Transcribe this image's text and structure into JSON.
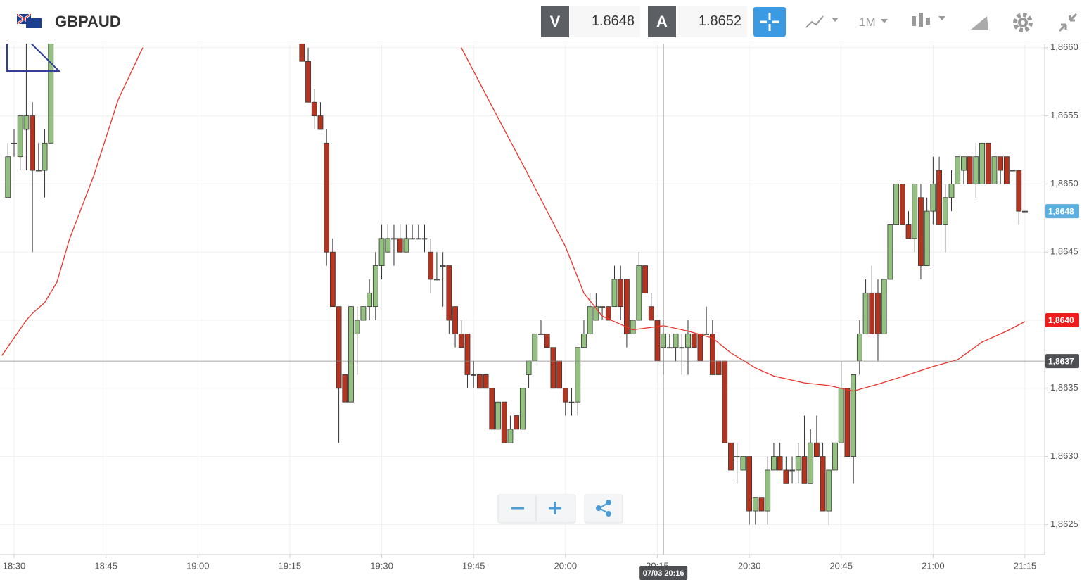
{
  "header": {
    "symbol": "GBPAUD",
    "bid_label": "V",
    "bid": "1.8648",
    "ask_label": "A",
    "ask": "1.8652",
    "timeframe": "1M"
  },
  "chart_data": {
    "type": "candlestick",
    "up_color": "#93c17f",
    "down_color": "#b5341f",
    "x": [
      "18:29",
      "18:30",
      "18:31",
      "18:32",
      "18:33",
      "18:34",
      "18:35",
      "18:36",
      "19:17",
      "19:18",
      "19:19",
      "19:20",
      "19:21",
      "19:22",
      "19:23",
      "19:24",
      "19:25",
      "19:26",
      "19:27",
      "19:28",
      "19:29",
      "19:30",
      "19:31",
      "19:32",
      "19:33",
      "19:34",
      "19:35",
      "19:36",
      "19:37",
      "19:38",
      "19:39",
      "19:40",
      "19:41",
      "19:42",
      "19:43",
      "19:44",
      "19:45",
      "19:46",
      "19:47",
      "19:48",
      "19:49",
      "19:50",
      "19:51",
      "19:52",
      "19:53",
      "19:54",
      "19:55",
      "19:56",
      "19:57",
      "19:58",
      "19:59",
      "20:00",
      "20:01",
      "20:02",
      "20:03",
      "20:04",
      "20:05",
      "20:06",
      "20:07",
      "20:08",
      "20:09",
      "20:10",
      "20:11",
      "20:12",
      "20:13",
      "20:14",
      "20:15",
      "20:16",
      "20:17",
      "20:18",
      "20:19",
      "20:20",
      "20:21",
      "20:22",
      "20:23",
      "20:24",
      "20:25",
      "20:26",
      "20:27",
      "20:28",
      "20:29",
      "20:30",
      "20:31",
      "20:32",
      "20:33",
      "20:34",
      "20:35",
      "20:36",
      "20:37",
      "20:38",
      "20:39",
      "20:40",
      "20:41",
      "20:42",
      "20:43",
      "20:44",
      "20:45",
      "20:46",
      "20:47",
      "20:48",
      "20:49",
      "20:50",
      "20:51",
      "20:52",
      "20:53",
      "20:54",
      "20:55",
      "20:56",
      "20:57",
      "20:58",
      "20:59",
      "21:00",
      "21:01",
      "21:02",
      "21:03",
      "21:04",
      "21:05",
      "21:06",
      "21:07",
      "21:08",
      "21:09",
      "21:10",
      "21:11",
      "21:12",
      "21:13",
      "21:14",
      "21:15"
    ],
    "ohlc": [
      [
        1.8649,
        1.8653,
        1.8649,
        1.8652
      ],
      [
        1.8653,
        1.8654,
        1.8652,
        1.8653
      ],
      [
        1.8652,
        1.8655,
        1.8651,
        1.8655
      ],
      [
        1.8654,
        1.8661,
        1.8651,
        1.8655
      ],
      [
        1.8655,
        1.8656,
        1.8645,
        1.8651
      ],
      [
        1.8651,
        1.8653,
        1.8651,
        1.8651
      ],
      [
        1.8651,
        1.8654,
        1.8649,
        1.8653
      ],
      [
        1.8653,
        1.8662,
        1.8653,
        1.8661
      ],
      [
        1.8661,
        1.8662,
        1.8659,
        1.8659
      ],
      [
        1.8659,
        1.866,
        1.8656,
        1.8656
      ],
      [
        1.8656,
        1.8657,
        1.8654,
        1.8655
      ],
      [
        1.8655,
        1.8656,
        1.8654,
        1.8654
      ],
      [
        1.8653,
        1.8654,
        1.8644,
        1.8645
      ],
      [
        1.8645,
        1.8646,
        1.8641,
        1.8641
      ],
      [
        1.8641,
        1.8641,
        1.8631,
        1.8635
      ],
      [
        1.8636,
        1.8636,
        1.8634,
        1.8634
      ],
      [
        1.8634,
        1.8641,
        1.8634,
        1.8641
      ],
      [
        1.8639,
        1.8641,
        1.8636,
        1.864
      ],
      [
        1.864,
        1.8641,
        1.864,
        1.8641
      ],
      [
        1.8641,
        1.8643,
        1.864,
        1.8642
      ],
      [
        1.8641,
        1.8645,
        1.864,
        1.8644
      ],
      [
        1.8644,
        1.8647,
        1.8643,
        1.8646
      ],
      [
        1.8645,
        1.8647,
        1.8645,
        1.8646
      ],
      [
        1.8646,
        1.8647,
        1.8644,
        1.8646
      ],
      [
        1.8646,
        1.8647,
        1.8645,
        1.8645
      ],
      [
        1.8645,
        1.8647,
        1.8645,
        1.8646
      ],
      [
        1.8646,
        1.8647,
        1.8646,
        1.8646
      ],
      [
        1.8646,
        1.8647,
        1.8646,
        1.8646
      ],
      [
        1.8646,
        1.8647,
        1.8645,
        1.8646
      ],
      [
        1.8645,
        1.8646,
        1.8642,
        1.8643
      ],
      [
        1.8643,
        1.8645,
        1.8643,
        1.8643
      ],
      [
        1.8644,
        1.8645,
        1.8641,
        1.8644
      ],
      [
        1.8644,
        1.8644,
        1.8639,
        1.864
      ],
      [
        1.8641,
        1.8641,
        1.8638,
        1.8639
      ],
      [
        1.8639,
        1.864,
        1.8638,
        1.8638
      ],
      [
        1.8639,
        1.8639,
        1.8635,
        1.8636
      ],
      [
        1.8636,
        1.8637,
        1.8635,
        1.8636
      ],
      [
        1.8636,
        1.8636,
        1.8635,
        1.8635
      ],
      [
        1.8636,
        1.8636,
        1.8635,
        1.8635
      ],
      [
        1.8635,
        1.8635,
        1.8632,
        1.8632
      ],
      [
        1.8632,
        1.8634,
        1.8632,
        1.8634
      ],
      [
        1.8634,
        1.8634,
        1.8631,
        1.8631
      ],
      [
        1.8631,
        1.8633,
        1.8631,
        1.8632
      ],
      [
        1.8633,
        1.8633,
        1.8632,
        1.8632
      ],
      [
        1.8632,
        1.8635,
        1.8632,
        1.8635
      ],
      [
        1.8636,
        1.8637,
        1.8635,
        1.8637
      ],
      [
        1.8637,
        1.8639,
        1.8637,
        1.8639
      ],
      [
        1.8639,
        1.864,
        1.8639,
        1.8639
      ],
      [
        1.8639,
        1.8639,
        1.8638,
        1.8638
      ],
      [
        1.8638,
        1.8638,
        1.8635,
        1.8635
      ],
      [
        1.8637,
        1.8637,
        1.8635,
        1.8635
      ],
      [
        1.8635,
        1.8635,
        1.8633,
        1.8634
      ],
      [
        1.8634,
        1.8635,
        1.8633,
        1.8634
      ],
      [
        1.8634,
        1.8638,
        1.8633,
        1.8638
      ],
      [
        1.8638,
        1.864,
        1.8638,
        1.8639
      ],
      [
        1.8639,
        1.8642,
        1.8639,
        1.8641
      ],
      [
        1.864,
        1.8642,
        1.864,
        1.8641
      ],
      [
        1.8641,
        1.8641,
        1.864,
        1.8641
      ],
      [
        1.8641,
        1.8641,
        1.864,
        1.864
      ],
      [
        1.8641,
        1.8644,
        1.8641,
        1.8643
      ],
      [
        1.8643,
        1.8644,
        1.864,
        1.8641
      ],
      [
        1.8643,
        1.8643,
        1.8638,
        1.8639
      ],
      [
        1.8639,
        1.864,
        1.8639,
        1.864
      ],
      [
        1.864,
        1.8645,
        1.864,
        1.8644
      ],
      [
        1.8644,
        1.8644,
        1.8642,
        1.8642
      ],
      [
        1.8641,
        1.8642,
        1.864,
        1.864
      ],
      [
        1.864,
        1.864,
        1.8637,
        1.8637
      ],
      [
        1.8638,
        1.864,
        1.8636,
        1.8639
      ],
      [
        1.8638,
        1.8639,
        1.8638,
        1.8638
      ],
      [
        1.8638,
        1.8639,
        1.8637,
        1.8639
      ],
      [
        1.8638,
        1.8639,
        1.8636,
        1.8638
      ],
      [
        1.8638,
        1.864,
        1.8636,
        1.8639
      ],
      [
        1.8639,
        1.8639,
        1.8638,
        1.8638
      ],
      [
        1.8639,
        1.8639,
        1.8637,
        1.8637
      ],
      [
        1.8639,
        1.8641,
        1.8639,
        1.8639
      ],
      [
        1.8639,
        1.864,
        1.8636,
        1.8636
      ],
      [
        1.8637,
        1.8637,
        1.8636,
        1.8636
      ],
      [
        1.8637,
        1.8637,
        1.8631,
        1.8631
      ],
      [
        1.8631,
        1.8631,
        1.8629,
        1.8629
      ],
      [
        1.863,
        1.8631,
        1.8628,
        1.863
      ],
      [
        1.8629,
        1.863,
        1.8629,
        1.863
      ],
      [
        1.863,
        1.863,
        1.8625,
        1.8626
      ],
      [
        1.8626,
        1.8627,
        1.8625,
        1.8627
      ],
      [
        1.8627,
        1.8627,
        1.8626,
        1.8626
      ],
      [
        1.8626,
        1.863,
        1.8625,
        1.8629
      ],
      [
        1.8629,
        1.8631,
        1.8629,
        1.863
      ],
      [
        1.863,
        1.8631,
        1.8629,
        1.8629
      ],
      [
        1.8629,
        1.863,
        1.8628,
        1.8628
      ],
      [
        1.8629,
        1.863,
        1.8628,
        1.8629
      ],
      [
        1.8629,
        1.8631,
        1.8628,
        1.863
      ],
      [
        1.863,
        1.8633,
        1.8628,
        1.8628
      ],
      [
        1.8628,
        1.8632,
        1.8628,
        1.8631
      ],
      [
        1.8631,
        1.8633,
        1.863,
        1.863
      ],
      [
        1.863,
        1.8631,
        1.8626,
        1.8626
      ],
      [
        1.8626,
        1.8629,
        1.8625,
        1.8629
      ],
      [
        1.8629,
        1.8631,
        1.8629,
        1.8631
      ],
      [
        1.8631,
        1.8637,
        1.8631,
        1.8635
      ],
      [
        1.8635,
        1.8635,
        1.863,
        1.863
      ],
      [
        1.863,
        1.8636,
        1.8628,
        1.8636
      ],
      [
        1.8637,
        1.864,
        1.8636,
        1.8639
      ],
      [
        1.8639,
        1.8643,
        1.8639,
        1.8642
      ],
      [
        1.8642,
        1.8644,
        1.8639,
        1.8639
      ],
      [
        1.8642,
        1.8643,
        1.8637,
        1.8639
      ],
      [
        1.8639,
        1.8643,
        1.8639,
        1.8643
      ],
      [
        1.8643,
        1.8647,
        1.8643,
        1.8647
      ],
      [
        1.8647,
        1.865,
        1.8647,
        1.865
      ],
      [
        1.865,
        1.865,
        1.8647,
        1.8647
      ],
      [
        1.8647,
        1.8648,
        1.8646,
        1.8646
      ],
      [
        1.8646,
        1.865,
        1.8645,
        1.865
      ],
      [
        1.8649,
        1.865,
        1.8643,
        1.8644
      ],
      [
        1.8644,
        1.8649,
        1.8644,
        1.8648
      ],
      [
        1.8648,
        1.8652,
        1.8647,
        1.865
      ],
      [
        1.8651,
        1.8652,
        1.8647,
        1.8647
      ],
      [
        1.8647,
        1.865,
        1.8645,
        1.8649
      ],
      [
        1.8649,
        1.8651,
        1.8648,
        1.865
      ],
      [
        1.865,
        1.8652,
        1.865,
        1.8652
      ],
      [
        1.8651,
        1.8652,
        1.865,
        1.8652
      ],
      [
        1.8652,
        1.8652,
        1.865,
        1.865
      ],
      [
        1.865,
        1.8653,
        1.8649,
        1.8652
      ],
      [
        1.865,
        1.8653,
        1.865,
        1.8653
      ],
      [
        1.8653,
        1.8653,
        1.865,
        1.865
      ],
      [
        1.865,
        1.8652,
        1.865,
        1.8652
      ],
      [
        1.8652,
        1.8652,
        1.865,
        1.8651
      ],
      [
        1.8652,
        1.8652,
        1.865,
        1.865
      ],
      [
        1.8651,
        1.8651,
        1.8651,
        1.8651
      ],
      [
        1.8651,
        1.8651,
        1.8647,
        1.8648
      ],
      [
        1.8648,
        1.8648,
        1.8648,
        1.8648
      ]
    ],
    "ma": {
      "color": "#e8332a",
      "x": [
        "18:28",
        "18:32",
        "18:33",
        "18:35",
        "18:37",
        "18:39",
        "18:43",
        "18:47",
        "18:51",
        "19:20",
        "19:43",
        "19:48",
        "19:54",
        "20:00",
        "20:03",
        "20:06",
        "20:11",
        "20:16",
        "20:20",
        "20:24",
        "20:27",
        "20:31",
        "20:34",
        "20:39",
        "20:43",
        "20:47",
        "20:51",
        "20:56",
        "21:00",
        "21:04",
        "21:08",
        "21:12",
        "21:15"
      ],
      "values": [
        1.86374,
        1.864,
        1.86405,
        1.86413,
        1.86428,
        1.86459,
        1.86506,
        1.86562,
        1.866,
        null,
        1.866,
        1.86557,
        1.86506,
        1.86454,
        1.8642,
        1.86403,
        1.86393,
        1.86396,
        1.86392,
        1.86387,
        1.86376,
        1.86365,
        1.86359,
        1.86354,
        1.86352,
        1.86348,
        1.86353,
        1.8636,
        1.86366,
        1.86371,
        1.86384,
        1.86392,
        1.86399
      ]
    },
    "ylim": [
      1.86228,
      1.86603
    ],
    "yticks": [
      {
        "value": 1.866,
        "label": "1,8660"
      },
      {
        "value": 1.8655,
        "label": "1,8655"
      },
      {
        "value": 1.865,
        "label": "1,8650"
      },
      {
        "value": 1.8645,
        "label": "1,8645"
      },
      {
        "value": 1.864,
        "label": "1,8640"
      },
      {
        "value": 1.8635,
        "label": "1,8635"
      },
      {
        "value": 1.863,
        "label": "1,8630"
      },
      {
        "value": 1.8625,
        "label": "1,8625"
      }
    ],
    "xticks": [
      "18:30",
      "18:45",
      "19:00",
      "19:15",
      "19:30",
      "19:45",
      "20:00",
      "20:15",
      "20:30",
      "20:45",
      "21:00",
      "21:15"
    ],
    "grid": true,
    "price_labels": [
      {
        "value": 1.8648,
        "label": "1,8648",
        "color": "#5aafde"
      },
      {
        "value": 1.864,
        "label": "1,8640",
        "color": "#ee1c1c"
      },
      {
        "value": 1.8637,
        "label": "1,8637",
        "color": "#4d4f52"
      }
    ],
    "crosshair_time": "07/03 20:16"
  }
}
